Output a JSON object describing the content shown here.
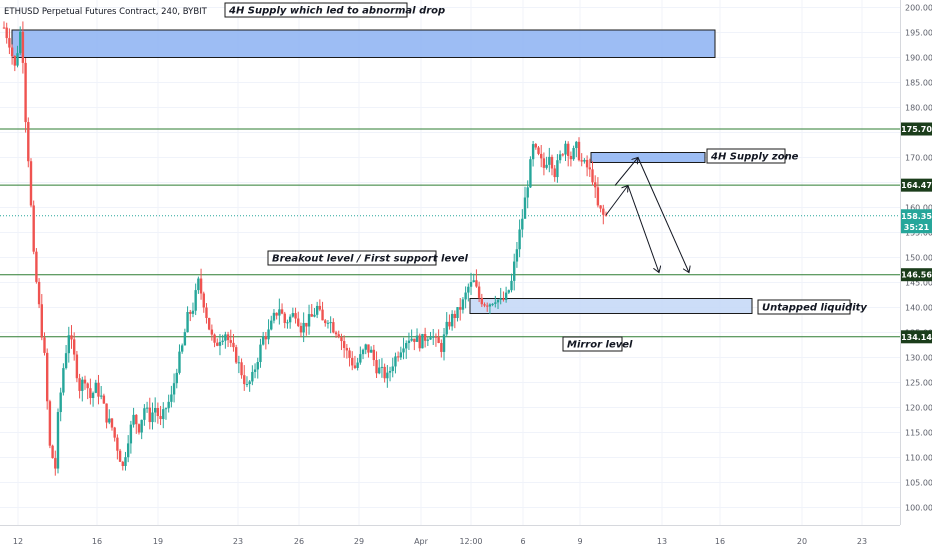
{
  "symbol_title": "ETHUSD Perpetual Futures Contract, 240, BYBIT",
  "colors": {
    "up": "#26a69a",
    "down": "#ef5350",
    "level_line": "#2e7d32",
    "zone_fill": "#8cb2f2",
    "zone_fill_light": "#c3d7f7",
    "zone_border": "#1a1a1a",
    "current_price": "#26a69a",
    "axis_text": "#5d606b",
    "tag_bg": "#1b3d1b"
  },
  "annotations": [
    {
      "id": "supply-4h-top",
      "text": "4H Supply which led to abnormal drop"
    },
    {
      "id": "supply-4h-zone",
      "text": "4H Supply zone"
    },
    {
      "id": "breakout",
      "text": "Breakout level / First support level"
    },
    {
      "id": "untapped",
      "text": "Untapped liquidity"
    },
    {
      "id": "mirror",
      "text": "Mirror level"
    }
  ],
  "chart_data": {
    "type": "candlestick",
    "title": "ETHUSD Perpetual Futures Contract, 240, BYBIT",
    "x_tick_labels": [
      "12",
      "16",
      "19",
      "23",
      "26",
      "29",
      "Apr",
      "12:00",
      "6",
      "9",
      "13",
      "16",
      "20",
      "23"
    ],
    "y_ticks": [
      100.0,
      105.0,
      110.0,
      115.0,
      120.0,
      125.0,
      130.0,
      135.0,
      140.0,
      145.0,
      150.0,
      155.0,
      160.0,
      165.0,
      170.0,
      175.0,
      180.0,
      185.0,
      190.0,
      195.0,
      200.0
    ],
    "ylim": [
      96.5,
      201.5
    ],
    "horizontal_levels": [
      {
        "label": "175.70",
        "value": 175.7
      },
      {
        "label": "164.47",
        "value": 164.47
      },
      {
        "label": "146.56",
        "value": 146.56
      },
      {
        "label": "134.14",
        "value": 134.14
      }
    ],
    "current_price": {
      "label": "158.35",
      "value": 158.35,
      "countdown": "35:21"
    },
    "zones": [
      {
        "name": "4H Supply which led to abnormal drop",
        "y_range": [
          190.0,
          195.5
        ]
      },
      {
        "name": "4H Supply zone",
        "y_range": [
          169.0,
          171.0
        ]
      },
      {
        "name": "Untapped liquidity",
        "y_range": [
          138.8,
          141.8
        ]
      }
    ],
    "projection_paths": [
      [
        158.5,
        164.4,
        147.0
      ],
      [
        164.4,
        170.0,
        147.0
      ]
    ],
    "price_path": [
      [
        0,
        196
      ],
      [
        2,
        193
      ],
      [
        4,
        188
      ],
      [
        6,
        195
      ],
      [
        7,
        190
      ],
      [
        8,
        178
      ],
      [
        9,
        170
      ],
      [
        10,
        160
      ],
      [
        11,
        150
      ],
      [
        13,
        140
      ],
      [
        15,
        130
      ],
      [
        17,
        112
      ],
      [
        19,
        108
      ],
      [
        20,
        118
      ],
      [
        22,
        128
      ],
      [
        24,
        135
      ],
      [
        26,
        130
      ],
      [
        28,
        124
      ],
      [
        30,
        126
      ],
      [
        32,
        122
      ],
      [
        34,
        124
      ],
      [
        36,
        122
      ],
      [
        38,
        118
      ],
      [
        40,
        116
      ],
      [
        42,
        112
      ],
      [
        44,
        108
      ],
      [
        46,
        114
      ],
      [
        48,
        118
      ],
      [
        50,
        116
      ],
      [
        52,
        120
      ],
      [
        54,
        118
      ],
      [
        56,
        120
      ],
      [
        58,
        117
      ],
      [
        60,
        120
      ],
      [
        62,
        122
      ],
      [
        64,
        128
      ],
      [
        66,
        132
      ],
      [
        68,
        138
      ],
      [
        70,
        140
      ],
      [
        72,
        145
      ],
      [
        74,
        141
      ],
      [
        76,
        136
      ],
      [
        78,
        132
      ],
      [
        80,
        134
      ],
      [
        82,
        135
      ],
      [
        84,
        132
      ],
      [
        86,
        130
      ],
      [
        88,
        127
      ],
      [
        90,
        124
      ],
      [
        92,
        126
      ],
      [
        94,
        130
      ],
      [
        96,
        134
      ],
      [
        98,
        135
      ],
      [
        100,
        138
      ],
      [
        102,
        140
      ],
      [
        104,
        137
      ],
      [
        106,
        138
      ],
      [
        108,
        139
      ],
      [
        110,
        136
      ],
      [
        112,
        137
      ],
      [
        114,
        138
      ],
      [
        116,
        140
      ],
      [
        118,
        137
      ],
      [
        120,
        138
      ],
      [
        122,
        136
      ],
      [
        124,
        135
      ],
      [
        126,
        132
      ],
      [
        128,
        130
      ],
      [
        130,
        128
      ],
      [
        132,
        130
      ],
      [
        134,
        132
      ],
      [
        136,
        131
      ],
      [
        138,
        128
      ],
      [
        140,
        127
      ],
      [
        142,
        126
      ],
      [
        144,
        129
      ],
      [
        146,
        131
      ],
      [
        148,
        133
      ],
      [
        150,
        134
      ],
      [
        152,
        134
      ],
      [
        154,
        133
      ],
      [
        156,
        134
      ],
      [
        158,
        135
      ],
      [
        160,
        133
      ],
      [
        162,
        132
      ],
      [
        164,
        136
      ],
      [
        166,
        138
      ],
      [
        168,
        139
      ],
      [
        170,
        141
      ],
      [
        172,
        144
      ],
      [
        174,
        145
      ],
      [
        176,
        142
      ],
      [
        178,
        141
      ],
      [
        180,
        141
      ],
      [
        182,
        142
      ],
      [
        184,
        141
      ],
      [
        186,
        142
      ],
      [
        188,
        145
      ],
      [
        190,
        152
      ],
      [
        192,
        158
      ],
      [
        194,
        165
      ],
      [
        196,
        172
      ],
      [
        198,
        170
      ],
      [
        200,
        168
      ],
      [
        202,
        171
      ],
      [
        204,
        167
      ],
      [
        206,
        170
      ],
      [
        208,
        173
      ],
      [
        210,
        170
      ],
      [
        212,
        172
      ],
      [
        214,
        169
      ],
      [
        216,
        168
      ],
      [
        218,
        166
      ],
      [
        220,
        160
      ],
      [
        222,
        158.35
      ]
    ],
    "grid": true,
    "legend": "none"
  }
}
